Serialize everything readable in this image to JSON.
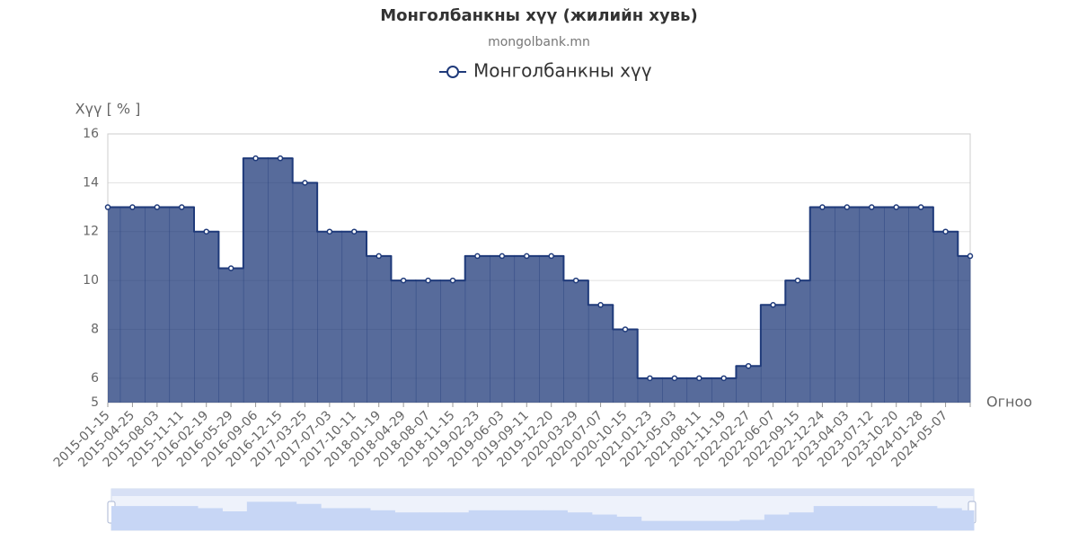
{
  "chart_data": {
    "type": "step-area",
    "title": "Монголбанкны хүү (жилийн хувь)",
    "subtitle": "mongolbank.mn",
    "y_axis_label": "Хүү [ % ]",
    "x_axis_label": "Огноо",
    "categories": [
      "2015-01-15",
      "2015-04-25",
      "2015-08-03",
      "2015-11-11",
      "2016-02-19",
      "2016-05-29",
      "2016-09-06",
      "2016-12-15",
      "2017-03-25",
      "2017-07-03",
      "2017-10-11",
      "2018-01-19",
      "2018-04-29",
      "2018-08-07",
      "2018-11-15",
      "2019-02-23",
      "2019-06-03",
      "2019-09-11",
      "2019-12-20",
      "2020-03-29",
      "2020-07-07",
      "2020-10-15",
      "2021-01-23",
      "2021-05-03",
      "2021-08-11",
      "2021-11-19",
      "2022-02-27",
      "2022-06-07",
      "2022-09-15",
      "2022-12-24",
      "2023-04-03",
      "2023-07-12",
      "2023-10-20",
      "2024-01-28",
      "2024-05-07",
      null
    ],
    "series": [
      {
        "name": "Монголбанкны хүү",
        "color": "#1f3a7a",
        "values": [
          13,
          13,
          13,
          13,
          12,
          10.5,
          15,
          15,
          14,
          12,
          12,
          11,
          10,
          10,
          10,
          11,
          11,
          11,
          11,
          10,
          9,
          8,
          6,
          6,
          6,
          6,
          6.5,
          9,
          10,
          13,
          13,
          13,
          13,
          13,
          12,
          11
        ]
      }
    ],
    "ylim": [
      5,
      16
    ],
    "yticks": [
      5,
      6,
      8,
      10,
      12,
      14,
      16
    ],
    "grid": true
  }
}
